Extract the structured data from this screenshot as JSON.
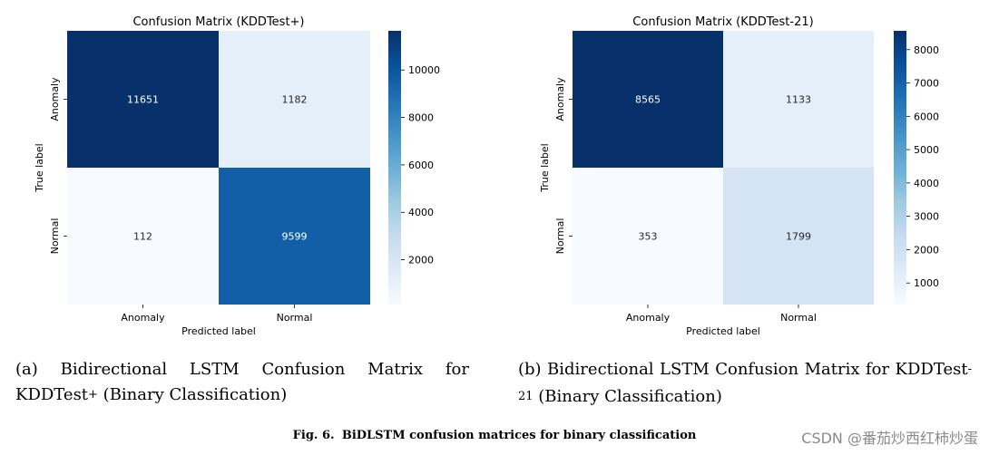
{
  "chart_data": [
    {
      "type": "heatmap",
      "title": "Confusion Matrix (KDDTest+)",
      "xlabel": "Predicted label",
      "ylabel": "True label",
      "x_categories": [
        "Anomaly",
        "Normal"
      ],
      "y_categories": [
        "Anomaly",
        "Normal"
      ],
      "values": [
        [
          11651,
          1182
        ],
        [
          112,
          9599
        ]
      ],
      "colormap": "Blues",
      "colorbar_range": [
        112,
        11651
      ],
      "colorbar_ticks": [
        2000,
        4000,
        6000,
        8000,
        10000
      ]
    },
    {
      "type": "heatmap",
      "title": "Confusion Matrix (KDDTest-21)",
      "xlabel": "Predicted label",
      "ylabel": "True label",
      "x_categories": [
        "Anomaly",
        "Normal"
      ],
      "y_categories": [
        "Anomaly",
        "Normal"
      ],
      "values": [
        [
          8565,
          1133
        ],
        [
          353,
          1799
        ]
      ],
      "colormap": "Blues",
      "colorbar_range": [
        353,
        8565
      ],
      "colorbar_ticks": [
        1000,
        2000,
        3000,
        4000,
        5000,
        6000,
        7000,
        8000
      ]
    }
  ],
  "captions": {
    "a": {
      "prefix": "(a) Bidirectional LSTM Confusion Matrix for KDDTest",
      "sup": "+",
      "suffix": " (Binary Classification)"
    },
    "b": {
      "prefix": "(b) Bidirectional LSTM Confusion Matrix for KDDTest",
      "sup": "-21",
      "suffix": " (Binary Classification)"
    }
  },
  "figure_caption": {
    "label": "Fig. 6.",
    "text": "BiDLSTM confusion matrices for binary classification"
  },
  "watermark": "CSDN @番茄炒西红柿炒蛋"
}
